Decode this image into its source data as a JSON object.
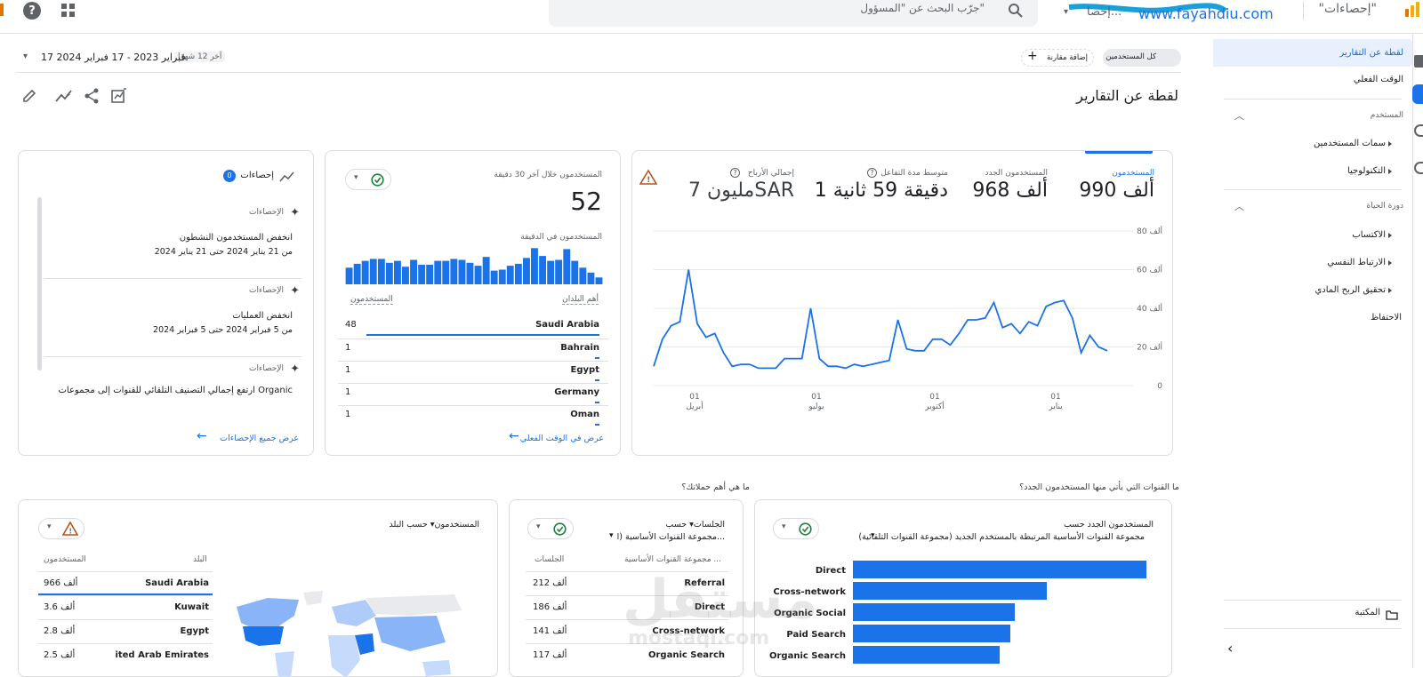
{
  "topbar": {
    "app_title": "\"إحصاءات\"",
    "url_text": "www.fayahdiu.com",
    "account_text": "إحصا...",
    "search_placeholder": "جرّب البحث عن \"المسؤول\""
  },
  "nav": {
    "items": [
      {
        "label": "لقطة عن التقارير",
        "active": true
      },
      {
        "label": "الوقت الفعلي",
        "active": false
      }
    ],
    "section_user": "المستخدم",
    "user_items": [
      "سمات المستخدمين",
      "التكنولوجيا"
    ],
    "section_lifecycle": "دورة الحياة",
    "lifecycle_items": [
      "الاكتساب",
      "الارتباط النفسي",
      "تحقيق الربح المادي",
      "الاحتفاظ"
    ],
    "library": "المكتبة"
  },
  "toolbar": {
    "segment_label": "كل المستخدمين",
    "segment_letter": "A",
    "add_comparison": "إضافة مقارنة",
    "date_prefix": "آخر 12 شهرًا",
    "date_range": "17 فبراير 2023 - 17 فبراير 2024",
    "page_title": "لقطة عن التقارير"
  },
  "overview": {
    "metrics": [
      {
        "label": "المستخدمون",
        "value": "990 ألف"
      },
      {
        "label": "المستخدمون الجدد",
        "value": "968 ألف"
      },
      {
        "label": "متوسط مدة التفاعل",
        "value": "1 دقيقة 59 ثانية"
      },
      {
        "label": "إجمالي الأرباح",
        "value": "7 مليونSAR"
      }
    ]
  },
  "realtime": {
    "title": "المستخدمون خلال آخر 30 دقيقة",
    "value": "52",
    "per_minute_label": "المستخدمون في الدقيقة",
    "col_country": "أهم البلدان",
    "col_users": "المستخدمون",
    "rows": [
      {
        "country": "Saudi Arabia",
        "users": "48"
      },
      {
        "country": "Bahrain",
        "users": "1"
      },
      {
        "country": "Egypt",
        "users": "1"
      },
      {
        "country": "Germany",
        "users": "1"
      },
      {
        "country": "Oman",
        "users": "1"
      }
    ],
    "link": "عرض في الوقت الفعلي"
  },
  "insights": {
    "title": "إحصاءات",
    "count": "0",
    "items": [
      {
        "tag": "الإحصاءات",
        "text": "انخفض المستخدمون النشطون",
        "date": "من 21 يناير 2024 حتى 21 يناير 2024"
      },
      {
        "tag": "الإحصاءات",
        "text": "انخفض العمليات",
        "date": "من 5 فبراير 2024 حتى 5 فبراير 2024"
      },
      {
        "tag": "الإحصاءات",
        "text": "ارتفع إجمالي التصنيف التلقائي للقنوات إلى مجموعات Organic",
        "date": ""
      }
    ],
    "link": "عرض جميع الإحصاءات"
  },
  "section_q1": "ما القنوات التي يأتي منها المستخدمون الجدد؟",
  "section_q2": "ما هي أهم حملاتك؟",
  "new_users_card": {
    "title": "المستخدمون الجدد حسب",
    "subtitle": "مجموعة القنوات الأساسية المرتبطة بالمستخدم الجديد (مجموعة القنوات التلقائية)"
  },
  "sessions_card": {
    "title": "الجلسات▾ حسب",
    "subtitle": "مجموعة القنوات الأساسية (ا...",
    "col_dim": "مجموعة القنوات الأساسية ...",
    "col_metric": "الجلسات",
    "rows": [
      {
        "name": "Referral",
        "value": "212 ألف"
      },
      {
        "name": "Direct",
        "value": "186 ألف"
      },
      {
        "name": "Cross-network",
        "value": "141 ألف"
      },
      {
        "name": "Organic Search",
        "value": "117 ألف"
      }
    ]
  },
  "country_card": {
    "title": "المستخدمون▾ حسب البلد",
    "col_dim": "البلد",
    "col_metric": "المستخدمون",
    "rows": [
      {
        "name": "Saudi Arabia",
        "value": "966 ألف"
      },
      {
        "name": "Kuwait",
        "value": "3.6 ألف"
      },
      {
        "name": "Egypt",
        "value": "2.8 ألف"
      },
      {
        "name": "ited Arab Emirates",
        "value": "2.5 ألف"
      }
    ]
  },
  "watermark": {
    "text": "مستقل",
    "sub": "mostaql.com"
  },
  "colors": {
    "accent": "#1a73e8",
    "green": "#188038",
    "warn": "#b3541e"
  },
  "chart_data": [
    {
      "type": "line",
      "ylabel": "",
      "ylim": [
        0,
        80
      ],
      "yticks": [
        "0",
        "20 ألف",
        "40 ألف",
        "60 ألف",
        "80 ألف"
      ],
      "xticks": [
        {
          "day": "01",
          "month": "أبريل"
        },
        {
          "day": "01",
          "month": "يوليو"
        },
        {
          "day": "01",
          "month": "أكتوبر"
        },
        {
          "day": "01",
          "month": "يناير"
        }
      ],
      "series": [
        {
          "values": [
            10,
            24,
            31,
            33,
            60,
            32,
            25,
            27,
            17,
            10,
            11,
            11,
            9,
            9,
            9,
            14,
            14,
            14,
            40,
            14,
            10,
            10,
            9,
            11,
            10,
            11,
            12,
            13,
            34,
            19,
            18,
            18,
            24,
            24,
            21,
            27,
            34,
            34,
            35,
            43,
            30,
            32,
            27,
            33,
            31,
            41,
            43,
            44,
            35,
            17,
            26,
            20,
            18
          ]
        }
      ]
    },
    {
      "type": "bar",
      "values": [
        17,
        21,
        24,
        26,
        26,
        22,
        24,
        18,
        25,
        20,
        20,
        24,
        24,
        26,
        25,
        22,
        19,
        28,
        14,
        15,
        19,
        21,
        27,
        37,
        29,
        24,
        25,
        36,
        24,
        17,
        12,
        7
      ]
    },
    {
      "type": "bar",
      "orientation": "horizontal",
      "categories": [
        "Direct",
        "Cross-network",
        "Organic Social",
        "Paid Search",
        "Organic Search"
      ],
      "values": [
        330,
        218,
        182,
        177,
        165
      ]
    }
  ]
}
